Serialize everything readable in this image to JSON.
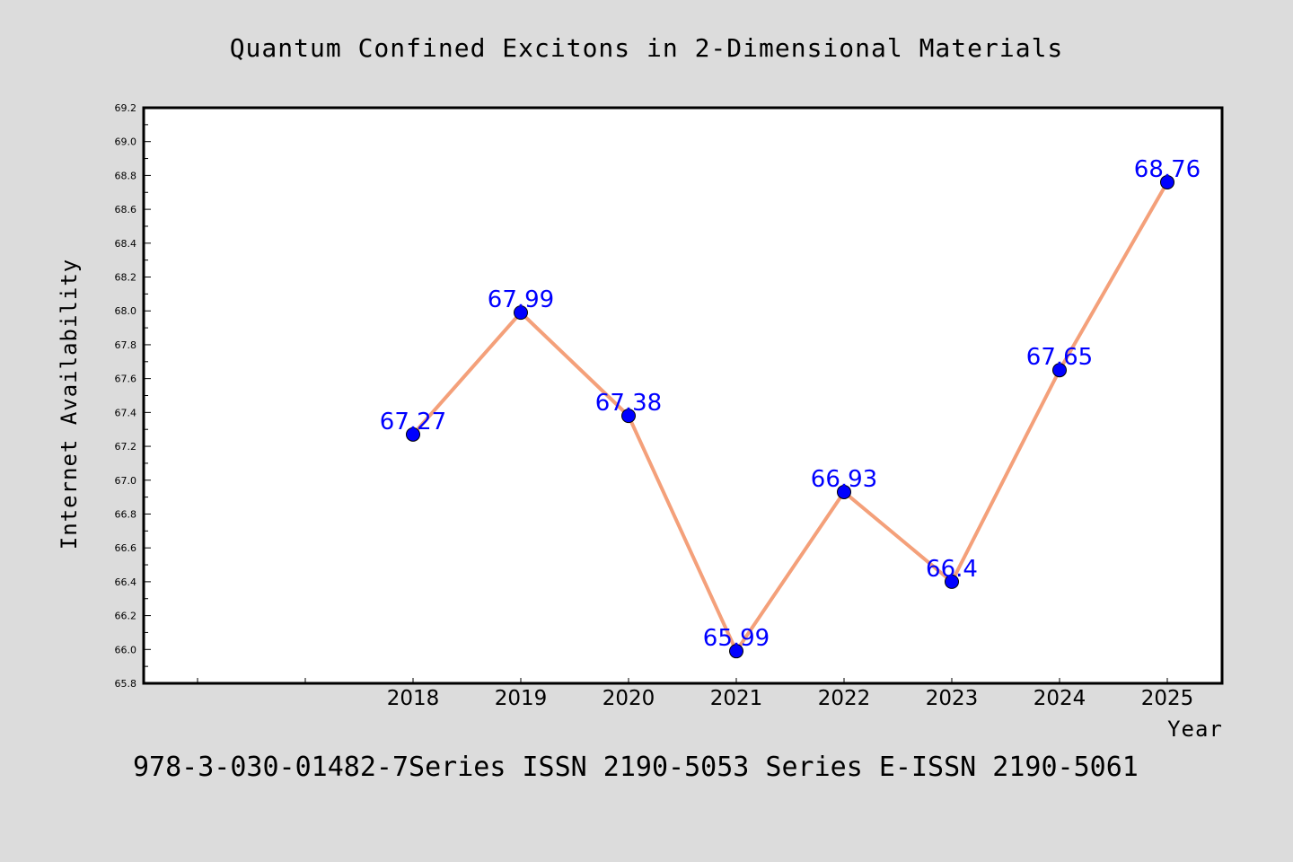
{
  "chart_data": {
    "type": "line",
    "title": "Quantum Confined Excitons in 2-Dimensional Materials",
    "xlabel": "Year",
    "ylabel": "Internet Availability",
    "categories": [
      "2018",
      "2019",
      "2020",
      "2021",
      "2022",
      "2023",
      "2024",
      "2025"
    ],
    "series": [
      {
        "values": [
          67.27,
          67.99,
          67.38,
          65.99,
          66.93,
          66.4,
          67.65,
          68.76
        ]
      }
    ],
    "data_labels": [
      "67.27",
      "67.99",
      "67.38",
      "65.99",
      "66.93",
      "66.4",
      "67.65",
      "68.76"
    ],
    "ylim": [
      65.8,
      69.2
    ],
    "yticks": [
      "65.8",
      "66.0",
      "66.2",
      "66.4",
      "66.6",
      "66.8",
      "67.0",
      "67.2",
      "67.4",
      "67.6",
      "67.8",
      "68.0",
      "68.2",
      "68.4",
      "68.6",
      "68.8",
      "69.0",
      "69.2"
    ],
    "grid": false,
    "line_color": "#f4a07a",
    "marker_color": "#0000ff",
    "label_color": "#0000ff"
  },
  "footer": "978-3-030-01482-7Series ISSN 2190-5053 Series E-ISSN 2190-5061"
}
